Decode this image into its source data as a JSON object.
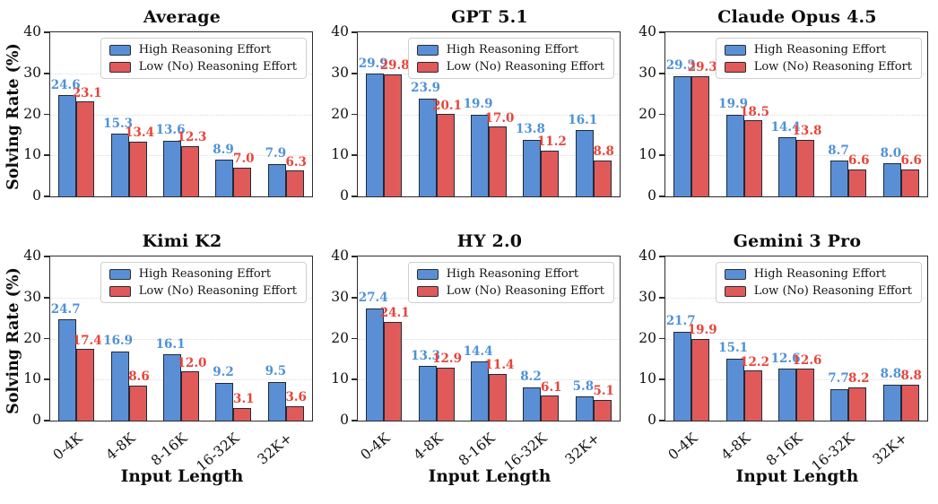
{
  "figure": {
    "ylabel": "Solving Rate (%)",
    "xlabel": "Input Length",
    "categories": [
      "0-4K",
      "4-8K",
      "8-16K",
      "16-32K",
      "32K+"
    ],
    "yticks": [
      0,
      10,
      20,
      30,
      40
    ],
    "ylim": [
      0,
      40
    ],
    "legend": [
      {
        "label": "High Reasoning Effort",
        "color": "#5a8fd6"
      },
      {
        "label": "Low (No) Reasoning Effort",
        "color": "#e05a5a"
      }
    ],
    "colors": {
      "high_bar": "#5a8fd6",
      "low_bar": "#e05a5a",
      "bar_edge": "#1e2a38",
      "high_label_text": "#4e92d8",
      "low_label_text": "#e8443a",
      "axis": "#2b2b2b",
      "gridline": "#dcdcdc"
    }
  },
  "chart_data": [
    {
      "type": "bar",
      "title": "Average",
      "categories": [
        "0-4K",
        "4-8K",
        "8-16K",
        "16-32K",
        "32K+"
      ],
      "ylim": [
        0,
        40
      ],
      "series": [
        {
          "name": "High Reasoning Effort",
          "values": [
            24.6,
            15.3,
            13.6,
            8.9,
            7.9
          ]
        },
        {
          "name": "Low (No) Reasoning Effort",
          "values": [
            23.1,
            13.4,
            12.3,
            7.0,
            6.3
          ]
        }
      ]
    },
    {
      "type": "bar",
      "title": "GPT 5.1",
      "categories": [
        "0-4K",
        "4-8K",
        "8-16K",
        "16-32K",
        "32K+"
      ],
      "ylim": [
        0,
        40
      ],
      "series": [
        {
          "name": "High Reasoning Effort",
          "values": [
            29.9,
            23.9,
            19.9,
            13.8,
            16.1
          ]
        },
        {
          "name": "Low (No) Reasoning Effort",
          "values": [
            29.8,
            20.1,
            17.0,
            11.2,
            8.8
          ]
        }
      ]
    },
    {
      "type": "bar",
      "title": "Claude Opus 4.5",
      "categories": [
        "0-4K",
        "4-8K",
        "8-16K",
        "16-32K",
        "32K+"
      ],
      "ylim": [
        0,
        40
      ],
      "series": [
        {
          "name": "High Reasoning Effort",
          "values": [
            29.3,
            19.9,
            14.4,
            8.7,
            8.0
          ]
        },
        {
          "name": "Low (No) Reasoning Effort",
          "values": [
            29.3,
            18.5,
            13.8,
            6.6,
            6.6
          ]
        }
      ]
    },
    {
      "type": "bar",
      "title": "Kimi K2",
      "categories": [
        "0-4K",
        "4-8K",
        "8-16K",
        "16-32K",
        "32K+"
      ],
      "ylim": [
        0,
        40
      ],
      "series": [
        {
          "name": "High Reasoning Effort",
          "values": [
            24.7,
            16.9,
            16.1,
            9.2,
            9.5
          ]
        },
        {
          "name": "Low (No) Reasoning Effort",
          "values": [
            17.4,
            8.6,
            12.0,
            3.1,
            3.6
          ]
        }
      ]
    },
    {
      "type": "bar",
      "title": "HY 2.0",
      "categories": [
        "0-4K",
        "4-8K",
        "8-16K",
        "16-32K",
        "32K+"
      ],
      "ylim": [
        0,
        40
      ],
      "series": [
        {
          "name": "High Reasoning Effort",
          "values": [
            27.4,
            13.3,
            14.4,
            8.2,
            5.8
          ]
        },
        {
          "name": "Low (No) Reasoning Effort",
          "values": [
            24.1,
            12.9,
            11.4,
            6.1,
            5.1
          ]
        }
      ]
    },
    {
      "type": "bar",
      "title": "Gemini 3 Pro",
      "categories": [
        "0-4K",
        "4-8K",
        "8-16K",
        "16-32K",
        "32K+"
      ],
      "ylim": [
        0,
        40
      ],
      "series": [
        {
          "name": "High Reasoning Effort",
          "values": [
            21.7,
            15.1,
            12.6,
            7.7,
            8.8
          ]
        },
        {
          "name": "Low (No) Reasoning Effort",
          "values": [
            19.9,
            12.2,
            12.6,
            8.2,
            8.8
          ]
        }
      ]
    }
  ]
}
